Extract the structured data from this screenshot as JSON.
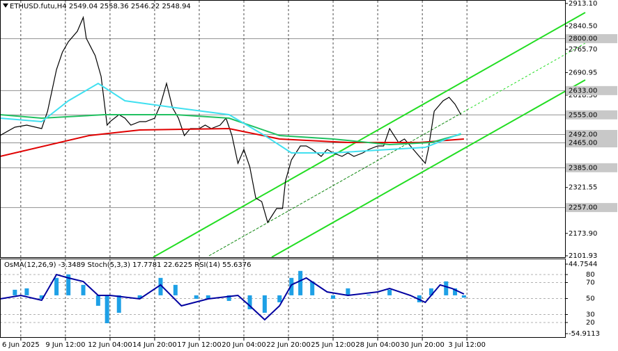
{
  "chart_data": [
    {
      "type": "line",
      "title": "ETHUSD.futu,H4  2549.04 2558.36 2546.22 2548.94",
      "xlim": [
        -7,
        183
      ],
      "ylim": [
        2101.93,
        2913.1
      ],
      "yticks": [
        {
          "value": 2913.1,
          "label": "2913.10"
        },
        {
          "value": 2840.5,
          "label": "2840.50"
        },
        {
          "value": 2765.7,
          "label": "2765.70"
        },
        {
          "value": 2690.95,
          "label": "2690.95"
        },
        {
          "value": 2618.3,
          "label": "2618.30"
        },
        {
          "value": 2321.55,
          "label": "2321.55"
        },
        {
          "value": 2173.9,
          "label": "2173.90"
        },
        {
          "value": 2101.93,
          "label": "2101.93"
        }
      ],
      "levels": [
        {
          "value": 2800,
          "label": "2800.00"
        },
        {
          "value": 2633,
          "label": "2633.00"
        },
        {
          "value": 2555,
          "label": "2555.00"
        },
        {
          "value": 2492,
          "label": "2492.00"
        },
        {
          "value": 2465,
          "label": "2465.00"
        },
        {
          "value": 2385,
          "label": "2385.00"
        },
        {
          "value": 2257,
          "label": "2257.00"
        }
      ],
      "series": [
        {
          "color": "#000000",
          "x": [
            -7,
            -2,
            2,
            7,
            9,
            12,
            14,
            16,
            19,
            21,
            22,
            25,
            27,
            29,
            30,
            33,
            35,
            37,
            40,
            42,
            45,
            47,
            49,
            51,
            53,
            55,
            57,
            60,
            62,
            64,
            67,
            69,
            71,
            73,
            75,
            77,
            79,
            81,
            83,
            86,
            88,
            89,
            91,
            94,
            96,
            98,
            101,
            103,
            105,
            108,
            110,
            112,
            115,
            117,
            120,
            122,
            124,
            127,
            129,
            131,
            134,
            136,
            137,
            139,
            142,
            144,
            146,
            148
          ],
          "values": [
            2488.5,
            2515.3,
            2522.0,
            2510.9,
            2566.7,
            2700.8,
            2756.7,
            2790.2,
            2823.7,
            2868.4,
            2801.4,
            2745.5,
            2678.5,
            2522.0,
            2533.2,
            2555.6,
            2544.4,
            2522.0,
            2533.2,
            2533.2,
            2544.4,
            2589.1,
            2656.1,
            2577.9,
            2544.4,
            2488.5,
            2510.9,
            2510.9,
            2522.0,
            2510.9,
            2522.0,
            2544.4,
            2488.5,
            2399.1,
            2443.8,
            2388.0,
            2287.4,
            2276.2,
            2209.2,
            2253.9,
            2253.9,
            2343.3,
            2410.3,
            2455.0,
            2455.0,
            2443.8,
            2421.5,
            2443.8,
            2432.7,
            2421.5,
            2432.7,
            2421.5,
            2432.7,
            2443.8,
            2455.0,
            2455.0,
            2510.9,
            2466.2,
            2477.4,
            2455.0,
            2421.5,
            2399.1,
            2443.8,
            2566.7,
            2600.3,
            2611.4,
            2589.1,
            2555.6
          ]
        },
        {
          "color": "#e00000",
          "x": [
            -7,
            23,
            40,
            70,
            87,
            110,
            134,
            149
          ],
          "values": [
            2421.5,
            2488.5,
            2506.4,
            2510.9,
            2477.4,
            2466.2,
            2466.2,
            2477.4
          ]
        },
        {
          "color": "#20c060",
          "x": [
            -7,
            7,
            28,
            52,
            70,
            87,
            105,
            124,
            138,
            148
          ],
          "values": [
            2555.6,
            2544.4,
            2555.6,
            2555.6,
            2544.4,
            2488.5,
            2477.4,
            2459.5,
            2466.2,
            2493.0
          ]
        },
        {
          "color": "#40e0f0",
          "x": [
            -7,
            7,
            16,
            26,
            35,
            52,
            70,
            82,
            91,
            105,
            124,
            136,
            148
          ],
          "values": [
            2544.4,
            2533.2,
            2600.3,
            2656.1,
            2600.3,
            2577.9,
            2555.6,
            2488.5,
            2432.7,
            2432.7,
            2443.8,
            2450.5,
            2495.2
          ]
        }
      ]
    },
    {
      "type": "line",
      "title": "OsMA(12,26,9) -3.3489  Stoch(5,3,3) 17.7781 22.6225  RSI(14) 55.6376",
      "xlim": [
        -7,
        183
      ],
      "xticks": [
        {
          "value": 0,
          "label": "6 Jun 2025"
        },
        {
          "value": 15,
          "label": "9 Jun 12:00"
        },
        {
          "value": 30,
          "label": "12 Jun 04:00"
        },
        {
          "value": 45,
          "label": "14 Jun 20:00"
        },
        {
          "value": 60,
          "label": "17 Jun 12:00"
        },
        {
          "value": 75,
          "label": "20 Jun 04:00"
        },
        {
          "value": 90,
          "label": "22 Jun 20:00"
        },
        {
          "value": 105,
          "label": "25 Jun 12:00"
        },
        {
          "value": 120,
          "label": "28 Jun 04:00"
        },
        {
          "value": 135,
          "label": "30 Jun 20:00"
        },
        {
          "value": 150,
          "label": "3 Jul 12:00"
        }
      ],
      "ylim": [
        -54.9113,
        44.7544
      ],
      "yticks": [
        44.7544,
        -54.9113
      ],
      "y2lim": [
        0,
        100
      ],
      "y2ticks": [
        80,
        70,
        50,
        30,
        20
      ],
      "series": [
        {
          "type": "bar",
          "color": "#1ea0e6",
          "x": [
            -2,
            2,
            7,
            12,
            16,
            21,
            26,
            29,
            33,
            40,
            47,
            52,
            59,
            63,
            70,
            77,
            82,
            87,
            91,
            94,
            98,
            105,
            110,
            117,
            124,
            134,
            138,
            143,
            146,
            149
          ],
          "values": [
            8,
            10,
            -5,
            25,
            30,
            15,
            -15,
            -40,
            -25,
            -5,
            25,
            15,
            -5,
            -5,
            -8,
            -20,
            -25,
            -10,
            25,
            35,
            20,
            -5,
            10,
            1,
            8,
            -10,
            10,
            20,
            10,
            -3.3489
          ]
        },
        {
          "type": "line",
          "axis": "y2",
          "color": "#0000a0",
          "x": [
            -7,
            0,
            7,
            12,
            16,
            21,
            26,
            30,
            40,
            47,
            54,
            63,
            73,
            77,
            82,
            87,
            91,
            96,
            103,
            110,
            120,
            124,
            131,
            136,
            141,
            145,
            149
          ],
          "values": [
            49.6,
            53.9,
            47.8,
            80.0,
            75.7,
            71.3,
            53.9,
            53.9,
            49.6,
            67.0,
            40.9,
            49.6,
            53.9,
            40.9,
            23.5,
            40.9,
            67.0,
            75.7,
            58.3,
            53.9,
            58.3,
            62.6,
            53.9,
            45.2,
            67.0,
            62.6,
            55.6376
          ]
        }
      ]
    }
  ]
}
